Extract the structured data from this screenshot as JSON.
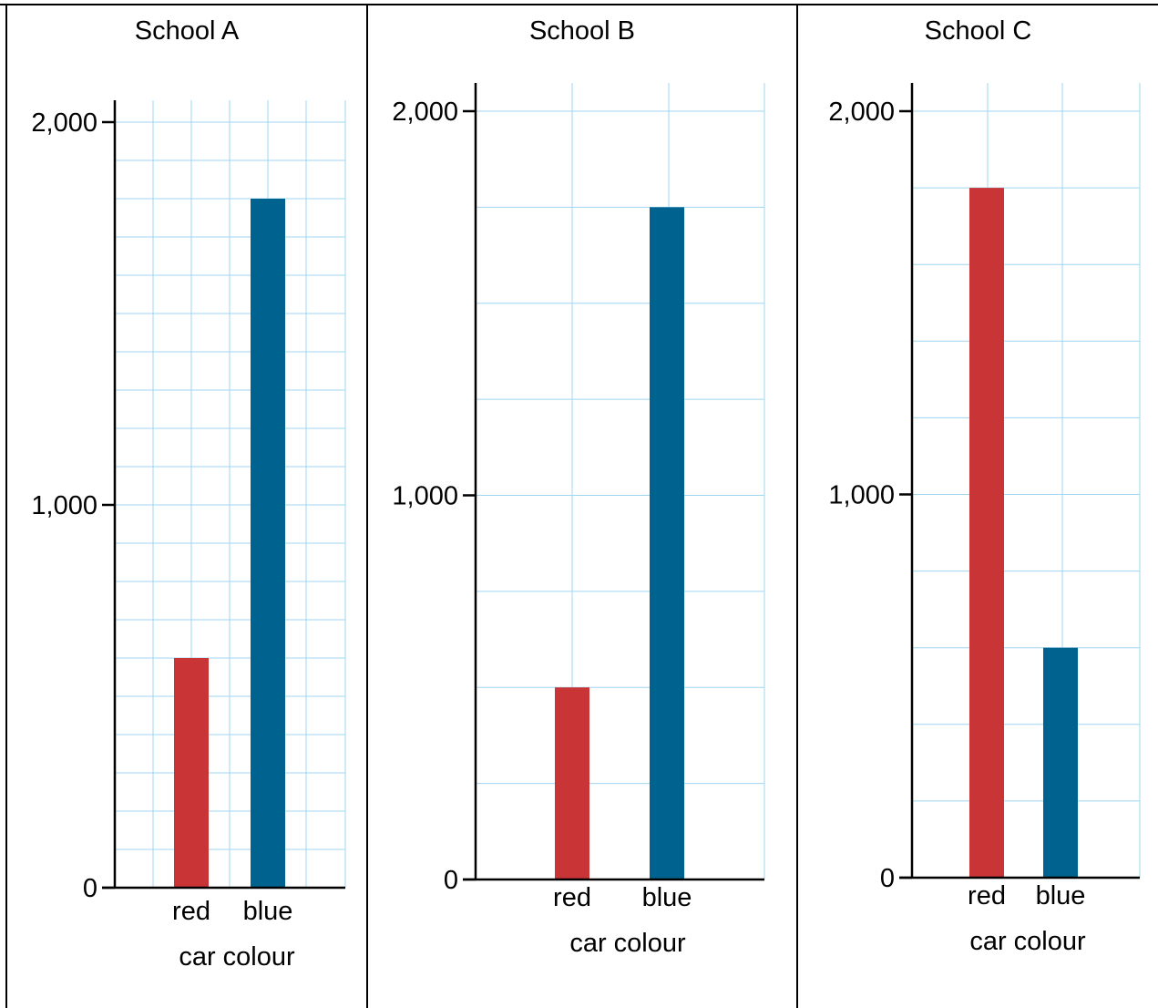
{
  "chart_data": [
    {
      "type": "bar",
      "title": "School A",
      "categories": [
        "red",
        "blue"
      ],
      "values": [
        600,
        1800
      ],
      "colors": [
        "#c93437",
        "#00628e"
      ],
      "xlabel": "car colour",
      "ylabel": "",
      "ylim": [
        0,
        2000
      ],
      "yticks": [
        {
          "value": 0,
          "label": "0"
        },
        {
          "value": 1000,
          "label": "1,000"
        },
        {
          "value": 2000,
          "label": "2,000"
        }
      ],
      "grid": true,
      "grid_step": 100
    },
    {
      "type": "bar",
      "title": "School B",
      "categories": [
        "red",
        "blue"
      ],
      "values": [
        500,
        1750
      ],
      "colors": [
        "#c93437",
        "#00628e"
      ],
      "xlabel": "car colour",
      "ylabel": "",
      "ylim": [
        0,
        2000
      ],
      "yticks": [
        {
          "value": 0,
          "label": "0"
        },
        {
          "value": 1000,
          "label": "1,000"
        },
        {
          "value": 2000,
          "label": "2,000"
        }
      ],
      "grid": true,
      "grid_step": 250
    },
    {
      "type": "bar",
      "title": "School C",
      "categories": [
        "red",
        "blue"
      ],
      "values": [
        1800,
        600
      ],
      "colors": [
        "#c93437",
        "#00628e"
      ],
      "xlabel": "car colour",
      "ylabel": "",
      "ylim": [
        0,
        2000
      ],
      "yticks": [
        {
          "value": 0,
          "label": "0"
        },
        {
          "value": 1000,
          "label": "1,000"
        },
        {
          "value": 2000,
          "label": "2,000"
        }
      ],
      "grid": true,
      "grid_step": 200
    }
  ],
  "style": {
    "grid_color": "#9fd6f2",
    "axis_color": "#000000"
  }
}
